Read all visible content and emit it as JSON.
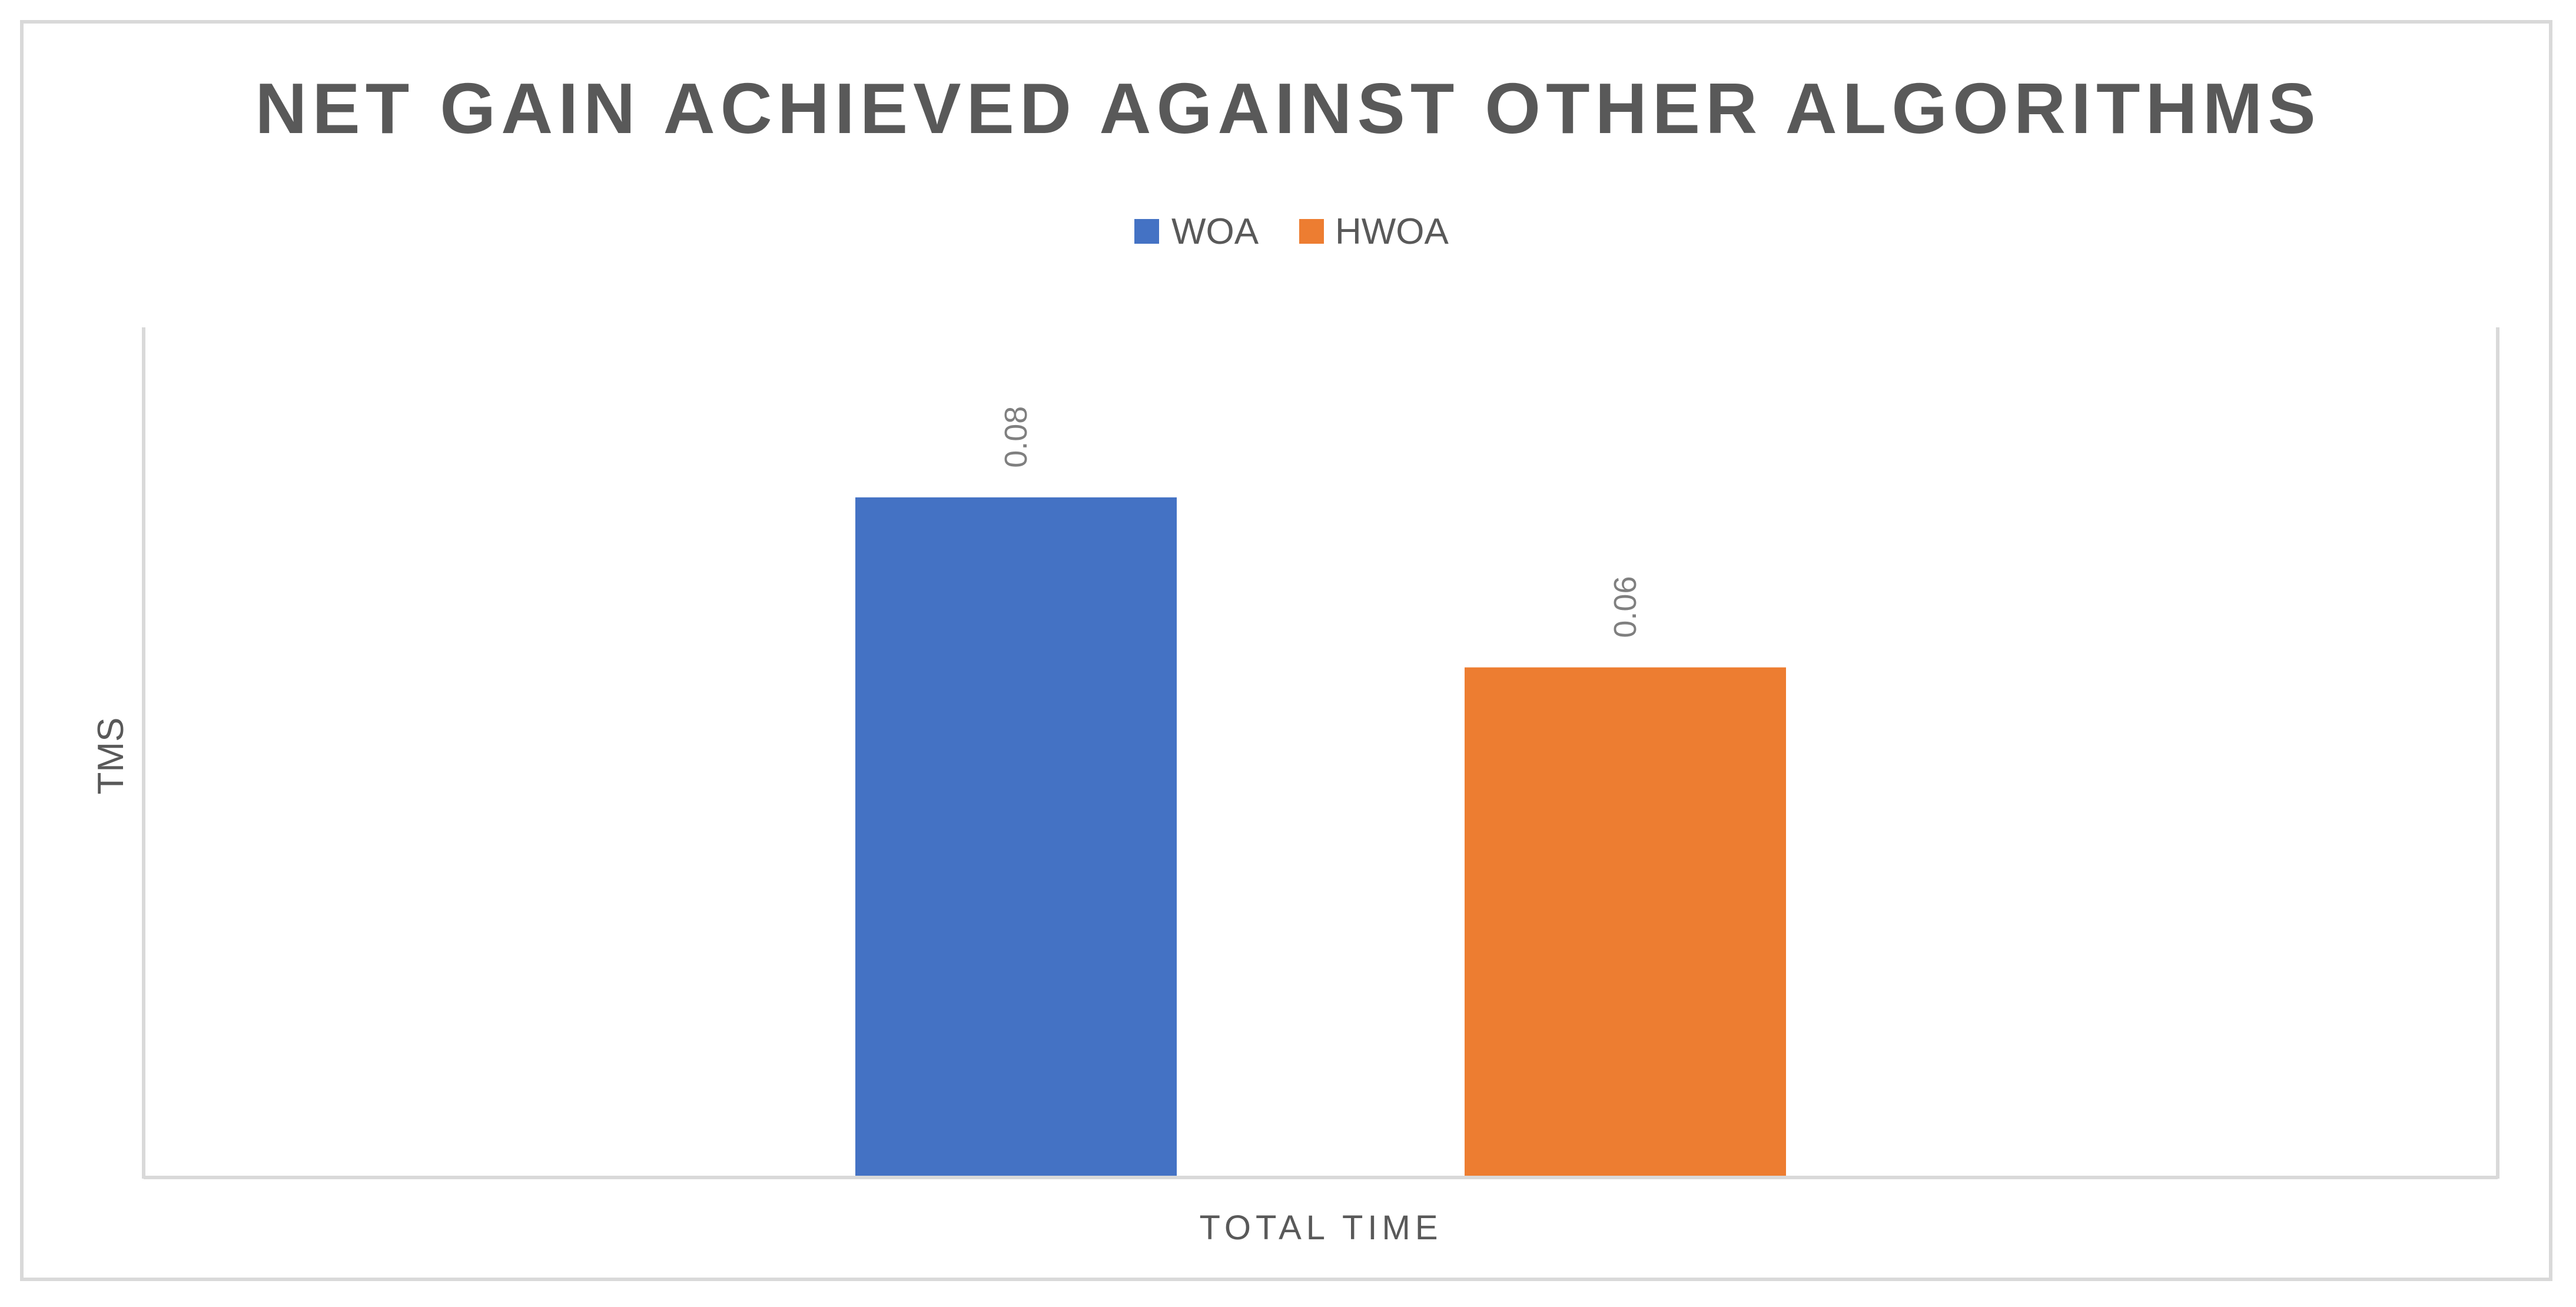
{
  "chart_data": {
    "type": "bar",
    "title": "NET GAIN ACHIEVED AGAINST OTHER ALGORITHMS",
    "categories": [
      "TOTAL TIME"
    ],
    "xlabel": "TOTAL TIME",
    "ylabel": "TMS",
    "ylim": [
      0,
      0.1
    ],
    "grid": false,
    "legend_position": "top",
    "series": [
      {
        "name": "WOA",
        "color": "#4472c4",
        "values": [
          0.08
        ],
        "labels": [
          "0.08"
        ]
      },
      {
        "name": "HWOA",
        "color": "#ed7d31",
        "values": [
          0.06
        ],
        "labels": [
          "0.06"
        ]
      }
    ]
  }
}
